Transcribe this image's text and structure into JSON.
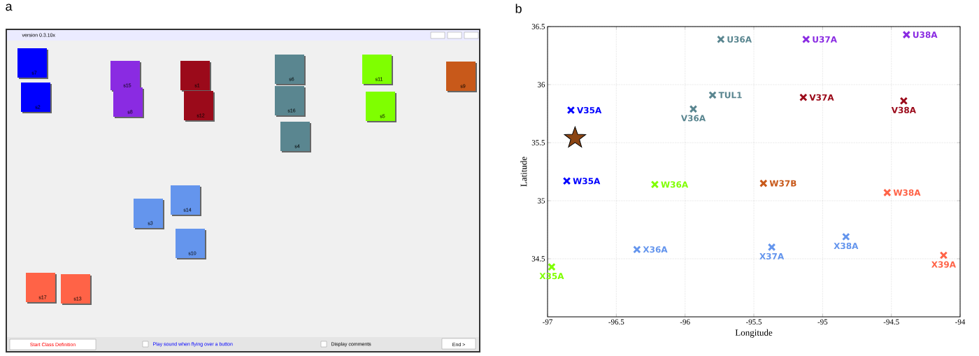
{
  "chart_data": [
    {
      "type": "other",
      "title": "a",
      "annotations": [
        "version 0.3.10x",
        "s7",
        "s2",
        "s15",
        "s8",
        "s1",
        "s12",
        "s6",
        "s16",
        "s4",
        "s11",
        "s5",
        "s9",
        "s14",
        "s3",
        "s10",
        "s17",
        "s13",
        "Start Class Definition",
        "Play sound when flying over a button",
        "Display comments",
        "End >"
      ]
    },
    {
      "type": "scatter",
      "title": "b",
      "xlabel": "Longitude",
      "ylabel": "Latitude",
      "xlim": [
        -97,
        -94
      ],
      "ylim": [
        34,
        36.5
      ],
      "xticks": [
        -97,
        -96.5,
        -96,
        -95.5,
        -95,
        -94.5,
        -94
      ],
      "yticks": [
        34.5,
        35,
        35.5,
        36,
        36.5
      ],
      "grid": true,
      "marker": "cross",
      "series": [
        {
          "name": "U36A",
          "color": "#5a8690",
          "x": [
            -95.74
          ],
          "values": [
            36.39
          ]
        },
        {
          "name": "U37A",
          "color": "#8a2be2",
          "x": [
            -95.12
          ],
          "values": [
            36.39
          ]
        },
        {
          "name": "U38A",
          "color": "#8a2be2",
          "x": [
            -94.39
          ],
          "values": [
            36.43
          ]
        },
        {
          "name": "TUL1",
          "color": "#5a8690",
          "x": [
            -95.8
          ],
          "values": [
            35.91
          ]
        },
        {
          "name": "V35A",
          "color": "#0000ff",
          "x": [
            -96.83
          ],
          "values": [
            35.78
          ]
        },
        {
          "name": "V36A",
          "color": "#5a8690",
          "x": [
            -95.94
          ],
          "values": [
            35.79
          ]
        },
        {
          "name": "V37A",
          "color": "#9b0a1a",
          "x": [
            -95.14
          ],
          "values": [
            35.89
          ]
        },
        {
          "name": "V38A",
          "color": "#9b0a1a",
          "x": [
            -94.41
          ],
          "values": [
            35.86
          ]
        },
        {
          "name": "W35A",
          "color": "#0000ff",
          "x": [
            -96.86
          ],
          "values": [
            35.17
          ]
        },
        {
          "name": "W36A",
          "color": "#7fff00",
          "x": [
            -96.22
          ],
          "values": [
            35.14
          ]
        },
        {
          "name": "W37B",
          "color": "#c8591a",
          "x": [
            -95.43
          ],
          "values": [
            35.15
          ]
        },
        {
          "name": "W38A",
          "color": "#ff6347",
          "x": [
            -94.53
          ],
          "values": [
            35.07
          ]
        },
        {
          "name": "X35A",
          "color": "#7fff00",
          "x": [
            -96.97
          ],
          "values": [
            34.43
          ]
        },
        {
          "name": "X36A",
          "color": "#6495ed",
          "x": [
            -96.35
          ],
          "values": [
            34.58
          ]
        },
        {
          "name": "X37A",
          "color": "#6495ed",
          "x": [
            -95.37
          ],
          "values": [
            34.6
          ]
        },
        {
          "name": "X38A",
          "color": "#6495ed",
          "x": [
            -94.83
          ],
          "values": [
            34.69
          ]
        },
        {
          "name": "X39A",
          "color": "#ff6347",
          "x": [
            -94.12
          ],
          "values": [
            34.53
          ]
        },
        {
          "color": "#8b4513",
          "marker": "star",
          "x": [
            -96.8
          ],
          "values": [
            35.54
          ]
        }
      ]
    }
  ]
}
